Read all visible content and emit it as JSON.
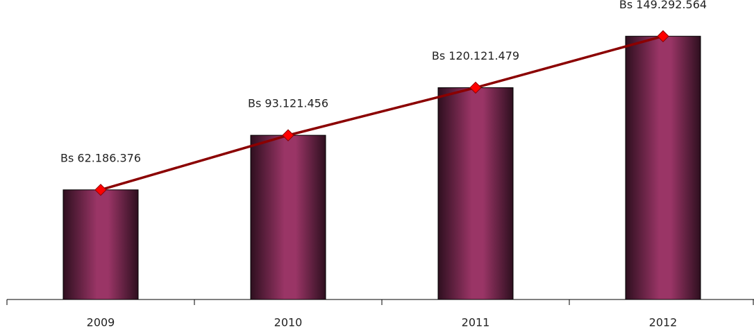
{
  "chart_data": {
    "type": "bar",
    "categories": [
      "2009",
      "2010",
      "2011",
      "2012"
    ],
    "values": [
      62186376,
      93121456,
      120121479,
      149292564
    ],
    "value_labels": [
      "Bs 62.186.376",
      "Bs 93.121.456",
      "Bs 120.121.479",
      "Bs 149.292.564"
    ],
    "color": "#9a3566",
    "line_color": "#8b0000",
    "marker_color": "#ff0000",
    "ylim": [
      0,
      160000000
    ]
  }
}
